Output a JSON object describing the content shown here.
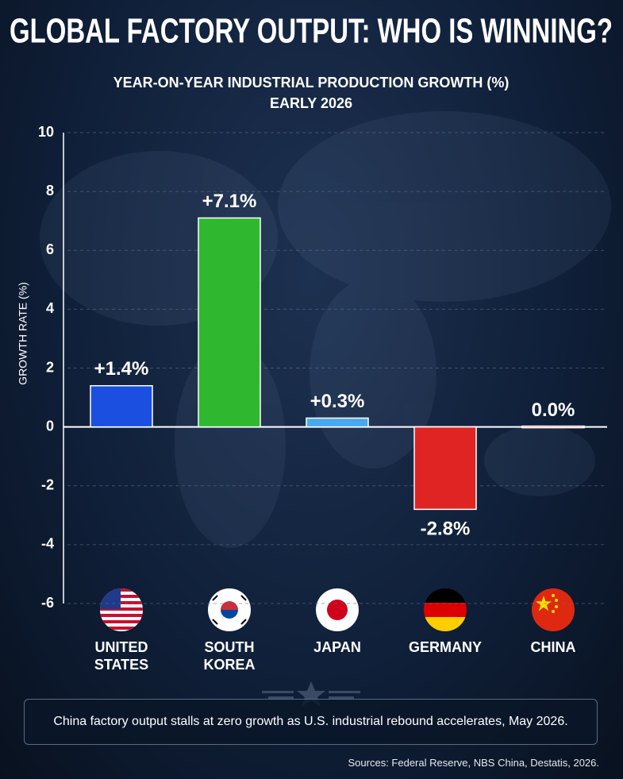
{
  "chart_data": {
    "type": "bar",
    "title": "GLOBAL FACTORY OUTPUT: WHO IS WINNING?",
    "subtitle": "YEAR-ON-YEAR INDUSTRIAL PRODUCTION GROWTH (%)",
    "period": "EARLY 2026",
    "y_label": "GROWTH RATE (%)",
    "categories": [
      "UNITED STATES",
      "SOUTH KOREA",
      "JAPAN",
      "GERMANY",
      "CHINA"
    ],
    "values": [
      1.4,
      7.1,
      0.3,
      -2.8,
      0.0
    ],
    "value_labels": [
      "+1.4%",
      "+7.1%",
      "+0.3%",
      "-2.8%",
      "0.0%"
    ],
    "colors": [
      "#1a4fe0",
      "#2fb82f",
      "#4aa8f0",
      "#e02424",
      "#f07030"
    ],
    "ylim": [
      -6,
      10
    ],
    "yticks": [
      -6,
      -4,
      -2,
      0,
      2,
      4,
      6,
      8,
      10
    ],
    "grid": true
  },
  "note": "China factory output stalls at zero growth as U.S. industrial rebound accelerates, May 2026.",
  "sources": "Sources: Federal Reserve, NBS China, Destatis, 2026."
}
